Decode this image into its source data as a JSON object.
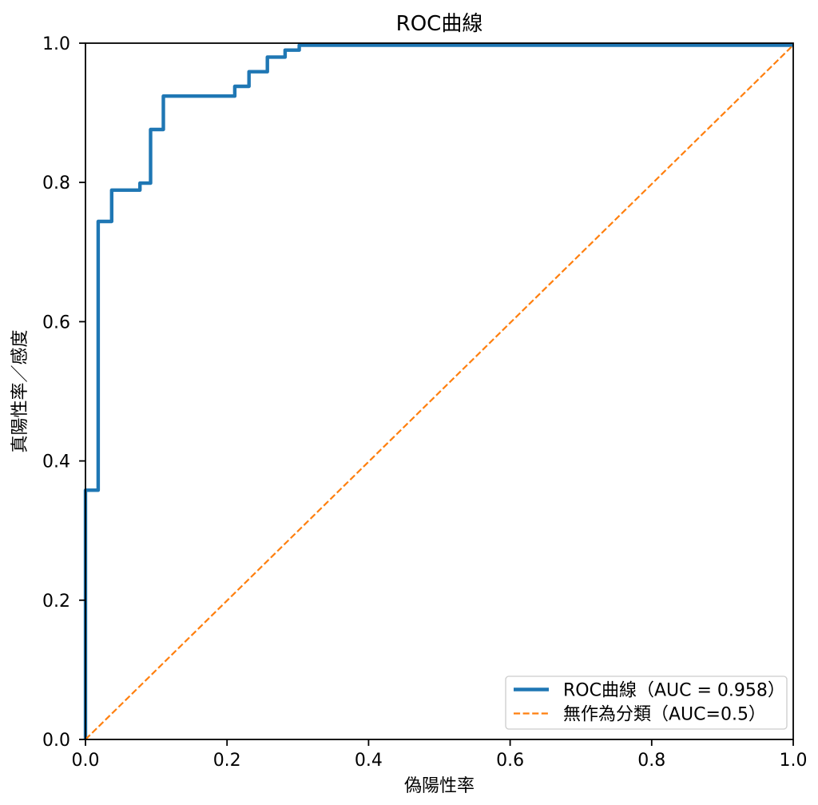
{
  "figure": {
    "background_color": "#ffffff"
  },
  "chart_data": {
    "type": "line",
    "title": "ROC曲線",
    "xlabel": "偽陽性率",
    "ylabel": "真陽性率／感度",
    "xlim": [
      0.0,
      1.0
    ],
    "ylim": [
      0.0,
      1.0
    ],
    "xticks": [
      0.0,
      0.2,
      0.4,
      0.6,
      0.8,
      1.0
    ],
    "yticks": [
      0.0,
      0.2,
      0.4,
      0.6,
      0.8,
      1.0
    ],
    "xtick_labels": [
      "0.0",
      "0.2",
      "0.4",
      "0.6",
      "0.8",
      "1.0"
    ],
    "ytick_labels": [
      "0.0",
      "0.2",
      "0.4",
      "0.6",
      "0.8",
      "1.0"
    ],
    "grid": false,
    "legend_position": "lower right",
    "legend_border_color": "#cccccc",
    "axis_color": "#000000",
    "series": [
      {
        "name": "ROC曲線（AUC = 0.958）",
        "auc": 0.958,
        "color": "#1f77b4",
        "line_style": "solid",
        "line_width": 4.4,
        "points": [
          [
            0.0,
            0.0
          ],
          [
            0.0,
            0.358
          ],
          [
            0.018,
            0.358
          ],
          [
            0.018,
            0.744
          ],
          [
            0.037,
            0.744
          ],
          [
            0.037,
            0.789
          ],
          [
            0.077,
            0.789
          ],
          [
            0.077,
            0.799
          ],
          [
            0.092,
            0.799
          ],
          [
            0.092,
            0.876
          ],
          [
            0.11,
            0.876
          ],
          [
            0.11,
            0.924
          ],
          [
            0.211,
            0.924
          ],
          [
            0.211,
            0.938
          ],
          [
            0.231,
            0.938
          ],
          [
            0.231,
            0.959
          ],
          [
            0.257,
            0.959
          ],
          [
            0.257,
            0.98
          ],
          [
            0.282,
            0.98
          ],
          [
            0.282,
            0.99
          ],
          [
            0.302,
            0.99
          ],
          [
            0.302,
            1.0
          ],
          [
            1.0,
            1.0
          ]
        ]
      },
      {
        "name": "無作為分類（AUC=0.5）",
        "auc": 0.5,
        "color": "#ff7f0e",
        "line_style": "dashed",
        "line_width": 2.2,
        "points": [
          [
            0.0,
            0.0
          ],
          [
            1.0,
            1.0
          ]
        ]
      }
    ]
  }
}
